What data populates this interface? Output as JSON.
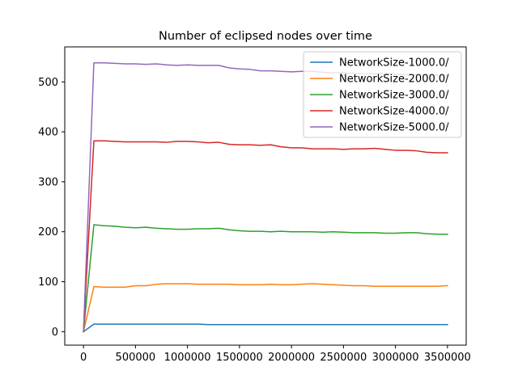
{
  "chart_data": {
    "type": "line",
    "title": "Number of eclipsed nodes over time",
    "xlabel": "",
    "ylabel": "",
    "xlim": [
      -180000,
      3680000
    ],
    "ylim": [
      -27,
      570
    ],
    "xticks": [
      0,
      500000,
      1000000,
      1500000,
      2000000,
      2500000,
      3000000,
      3500000
    ],
    "xtick_labels": [
      "0",
      "500000",
      "1000000",
      "1500000",
      "2000000",
      "2500000",
      "3000000",
      "3500000"
    ],
    "yticks": [
      0,
      100,
      200,
      300,
      400,
      500
    ],
    "ytick_labels": [
      "0",
      "100",
      "200",
      "300",
      "400",
      "500"
    ],
    "grid": false,
    "legend_position": "top-right",
    "x": [
      0,
      100000,
      200000,
      300000,
      400000,
      500000,
      600000,
      700000,
      800000,
      900000,
      1000000,
      1100000,
      1200000,
      1300000,
      1400000,
      1500000,
      1600000,
      1700000,
      1800000,
      1900000,
      2000000,
      2100000,
      2200000,
      2300000,
      2400000,
      2500000,
      2600000,
      2700000,
      2800000,
      2900000,
      3000000,
      3100000,
      3200000,
      3300000,
      3400000,
      3500000
    ],
    "series": [
      {
        "name": "NetworkSize-1000.0/",
        "color": "#1f77b4",
        "values": [
          0,
          15,
          15,
          15,
          15,
          15,
          15,
          15,
          15,
          15,
          15,
          15,
          14,
          14,
          14,
          14,
          14,
          14,
          14,
          14,
          14,
          14,
          14,
          14,
          14,
          14,
          14,
          14,
          14,
          14,
          14,
          14,
          14,
          14,
          14,
          14
        ]
      },
      {
        "name": "NetworkSize-2000.0/",
        "color": "#ff7f0e",
        "values": [
          0,
          90,
          89,
          89,
          89,
          92,
          92,
          95,
          96,
          96,
          96,
          95,
          95,
          95,
          95,
          94,
          94,
          94,
          95,
          94,
          94,
          95,
          96,
          95,
          94,
          93,
          92,
          92,
          91,
          91,
          91,
          91,
          91,
          91,
          91,
          92
        ]
      },
      {
        "name": "NetworkSize-3000.0/",
        "color": "#2ca02c",
        "values": [
          0,
          214,
          212,
          211,
          209,
          208,
          209,
          207,
          206,
          205,
          205,
          206,
          206,
          207,
          204,
          202,
          201,
          201,
          200,
          201,
          200,
          200,
          200,
          199,
          200,
          199,
          198,
          198,
          198,
          197,
          197,
          198,
          198,
          196,
          195,
          195
        ]
      },
      {
        "name": "NetworkSize-4000.0/",
        "color": "#d62728",
        "values": [
          0,
          382,
          382,
          381,
          380,
          380,
          380,
          380,
          379,
          381,
          381,
          380,
          378,
          379,
          375,
          374,
          374,
          373,
          374,
          370,
          368,
          368,
          366,
          366,
          366,
          365,
          366,
          366,
          367,
          365,
          363,
          363,
          362,
          359,
          358,
          358
        ]
      },
      {
        "name": "NetworkSize-5000.0/",
        "color": "#9467bd",
        "values": [
          0,
          538,
          538,
          537,
          536,
          536,
          535,
          536,
          534,
          533,
          534,
          533,
          533,
          533,
          528,
          526,
          525,
          522,
          522,
          521,
          520,
          521,
          521,
          519,
          518,
          518,
          517,
          516,
          516,
          516,
          515,
          515,
          514,
          514,
          513,
          513
        ]
      }
    ]
  }
}
